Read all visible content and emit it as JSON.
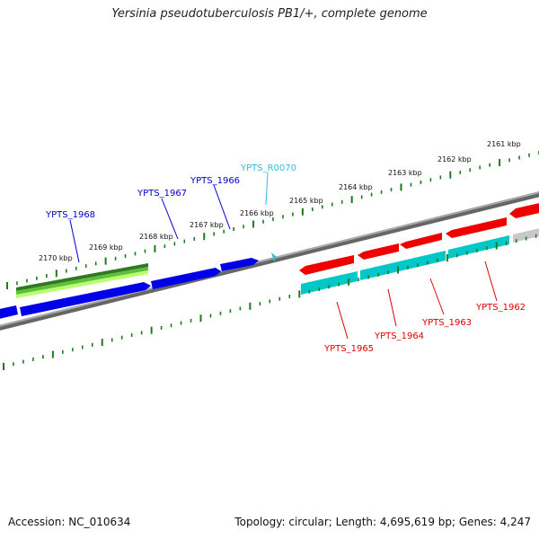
{
  "title": "Yersinia pseudotuberculosis PB1/+, complete genome",
  "footer": {
    "accession": "Accession: NC_010634",
    "summary": "Topology: circular; Length: 4,695,619 bp; Genes: 4,247"
  },
  "colors": {
    "forward_cds": "#0000e8",
    "reverse_cds": "#ee0000",
    "reverse_gene": "#00c8c8",
    "forward_gene_dark": "#2f7a1f",
    "forward_gene_light": "#a8f060",
    "rna": "#33bbdd",
    "backbone": "#808080",
    "tick": "#1f7a1f",
    "label_blue": "#0000cc",
    "label_red": "#dd0000",
    "label_rna": "#33bbdd"
  },
  "ruler": [
    {
      "label": "2161 kbp"
    },
    {
      "label": "2162 kbp"
    },
    {
      "label": "2163 kbp"
    },
    {
      "label": "2164 kbp"
    },
    {
      "label": "2165 kbp"
    },
    {
      "label": "2166 kbp"
    },
    {
      "label": "2167 kbp"
    },
    {
      "label": "2168 kbp"
    },
    {
      "label": "2169 kbp"
    },
    {
      "label": "2170 kbp"
    }
  ],
  "gene_labels": [
    {
      "name": "YPTS_1968",
      "strand": "forward"
    },
    {
      "name": "YPTS_1967",
      "strand": "forward"
    },
    {
      "name": "YPTS_1966",
      "strand": "forward"
    },
    {
      "name": "YPTS_R0070",
      "strand": "rna"
    },
    {
      "name": "YPTS_1965",
      "strand": "reverse"
    },
    {
      "name": "YPTS_1964",
      "strand": "reverse"
    },
    {
      "name": "YPTS_1963",
      "strand": "reverse"
    },
    {
      "name": "YPTS_1962",
      "strand": "reverse"
    }
  ]
}
